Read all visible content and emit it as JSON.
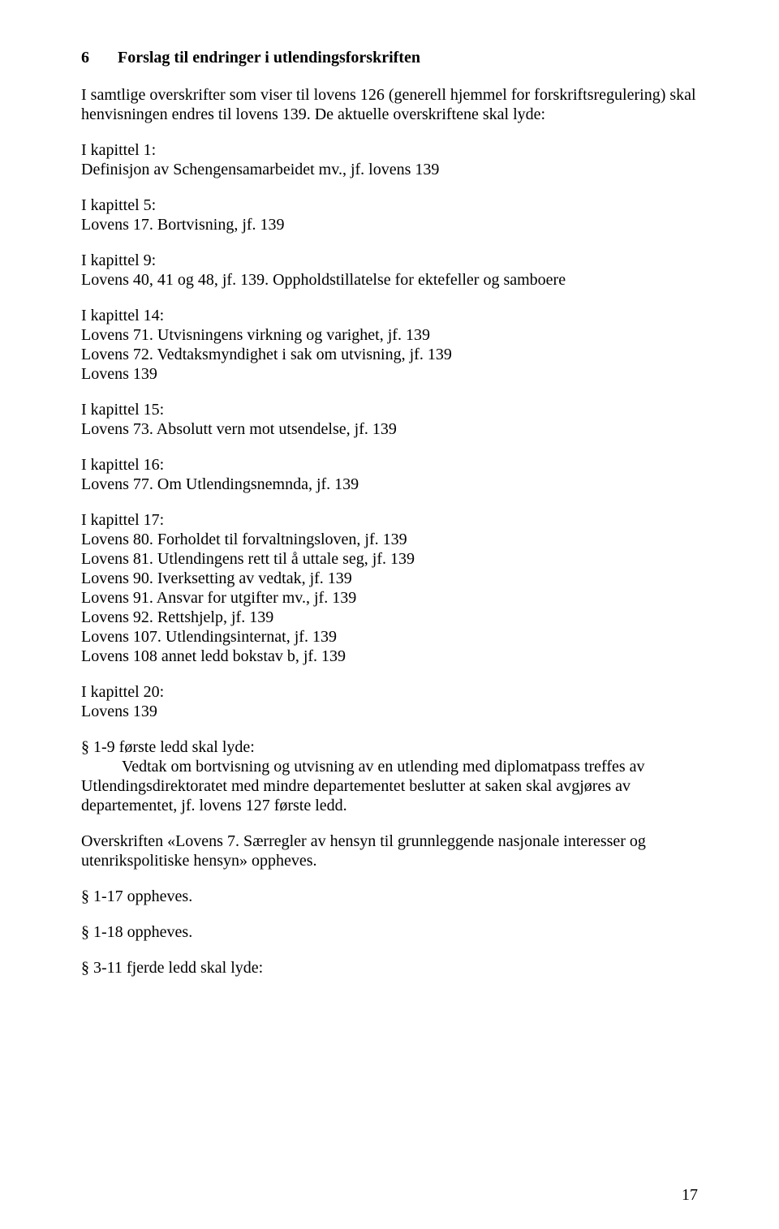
{
  "heading": {
    "number": "6",
    "text": "Forslag til endringer i utlendingsforskriften"
  },
  "intro": "I samtlige overskrifter som viser til lovens 126 (generell hjemmel for forskriftsregulering) skal henvisningen endres til lovens 139. De aktuelle overskriftene skal lyde:",
  "kap1": {
    "title": "I kapittel 1:",
    "line": "Definisjon av Schengensamarbeidet mv., jf. lovens 139"
  },
  "kap5": {
    "title": "I kapittel 5:",
    "line": "Lovens 17. Bortvisning, jf. 139"
  },
  "kap9": {
    "title": "I kapittel 9:",
    "line": "Lovens 40, 41 og 48, jf. 139. Oppholdstillatelse for ektefeller og samboere"
  },
  "kap14": {
    "title": "I kapittel 14:",
    "line1": "Lovens 71. Utvisningens virkning og varighet, jf. 139",
    "line2": "Lovens 72. Vedtaksmyndighet i sak om utvisning, jf. 139",
    "line3": "Lovens 139"
  },
  "kap15": {
    "title": "I kapittel 15:",
    "line": "Lovens 73. Absolutt vern mot utsendelse, jf. 139"
  },
  "kap16": {
    "title": "I kapittel 16:",
    "line": "Lovens 77. Om Utlendingsnemnda, jf. 139"
  },
  "kap17": {
    "title": "I kapittel 17:",
    "line1": "Lovens 80. Forholdet til forvaltningsloven, jf. 139",
    "line2": "Lovens 81. Utlendingens rett til å uttale seg, jf. 139",
    "line3": "Lovens 90. Iverksetting av vedtak, jf. 139",
    "line4": "Lovens 91. Ansvar for utgifter mv., jf. 139",
    "line5": "Lovens 92. Rettshjelp, jf. 139",
    "line6": "Lovens 107. Utlendingsinternat, jf. 139",
    "line7": "Lovens 108 annet ledd bokstav b, jf. 139"
  },
  "kap20": {
    "title": "I kapittel 20:",
    "line": "Lovens 139"
  },
  "s1_9": {
    "title": "§ 1-9 første ledd skal lyde:",
    "body": "Vedtak om bortvisning og utvisning av en utlending med diplomatpass treffes av Utlendingsdirektoratet med mindre departementet beslutter at saken skal avgjøres av departementet, jf. lovens 127 første ledd."
  },
  "overskrift": "Overskriften «Lovens 7. Særregler av hensyn til grunnleggende nasjonale interesser og utenrikspolitiske hensyn» oppheves.",
  "s1_17": "§ 1-17 oppheves.",
  "s1_18": "§ 1-18 oppheves.",
  "s3_11": "§ 3-11 fjerde ledd skal lyde:",
  "pageNumber": "17"
}
